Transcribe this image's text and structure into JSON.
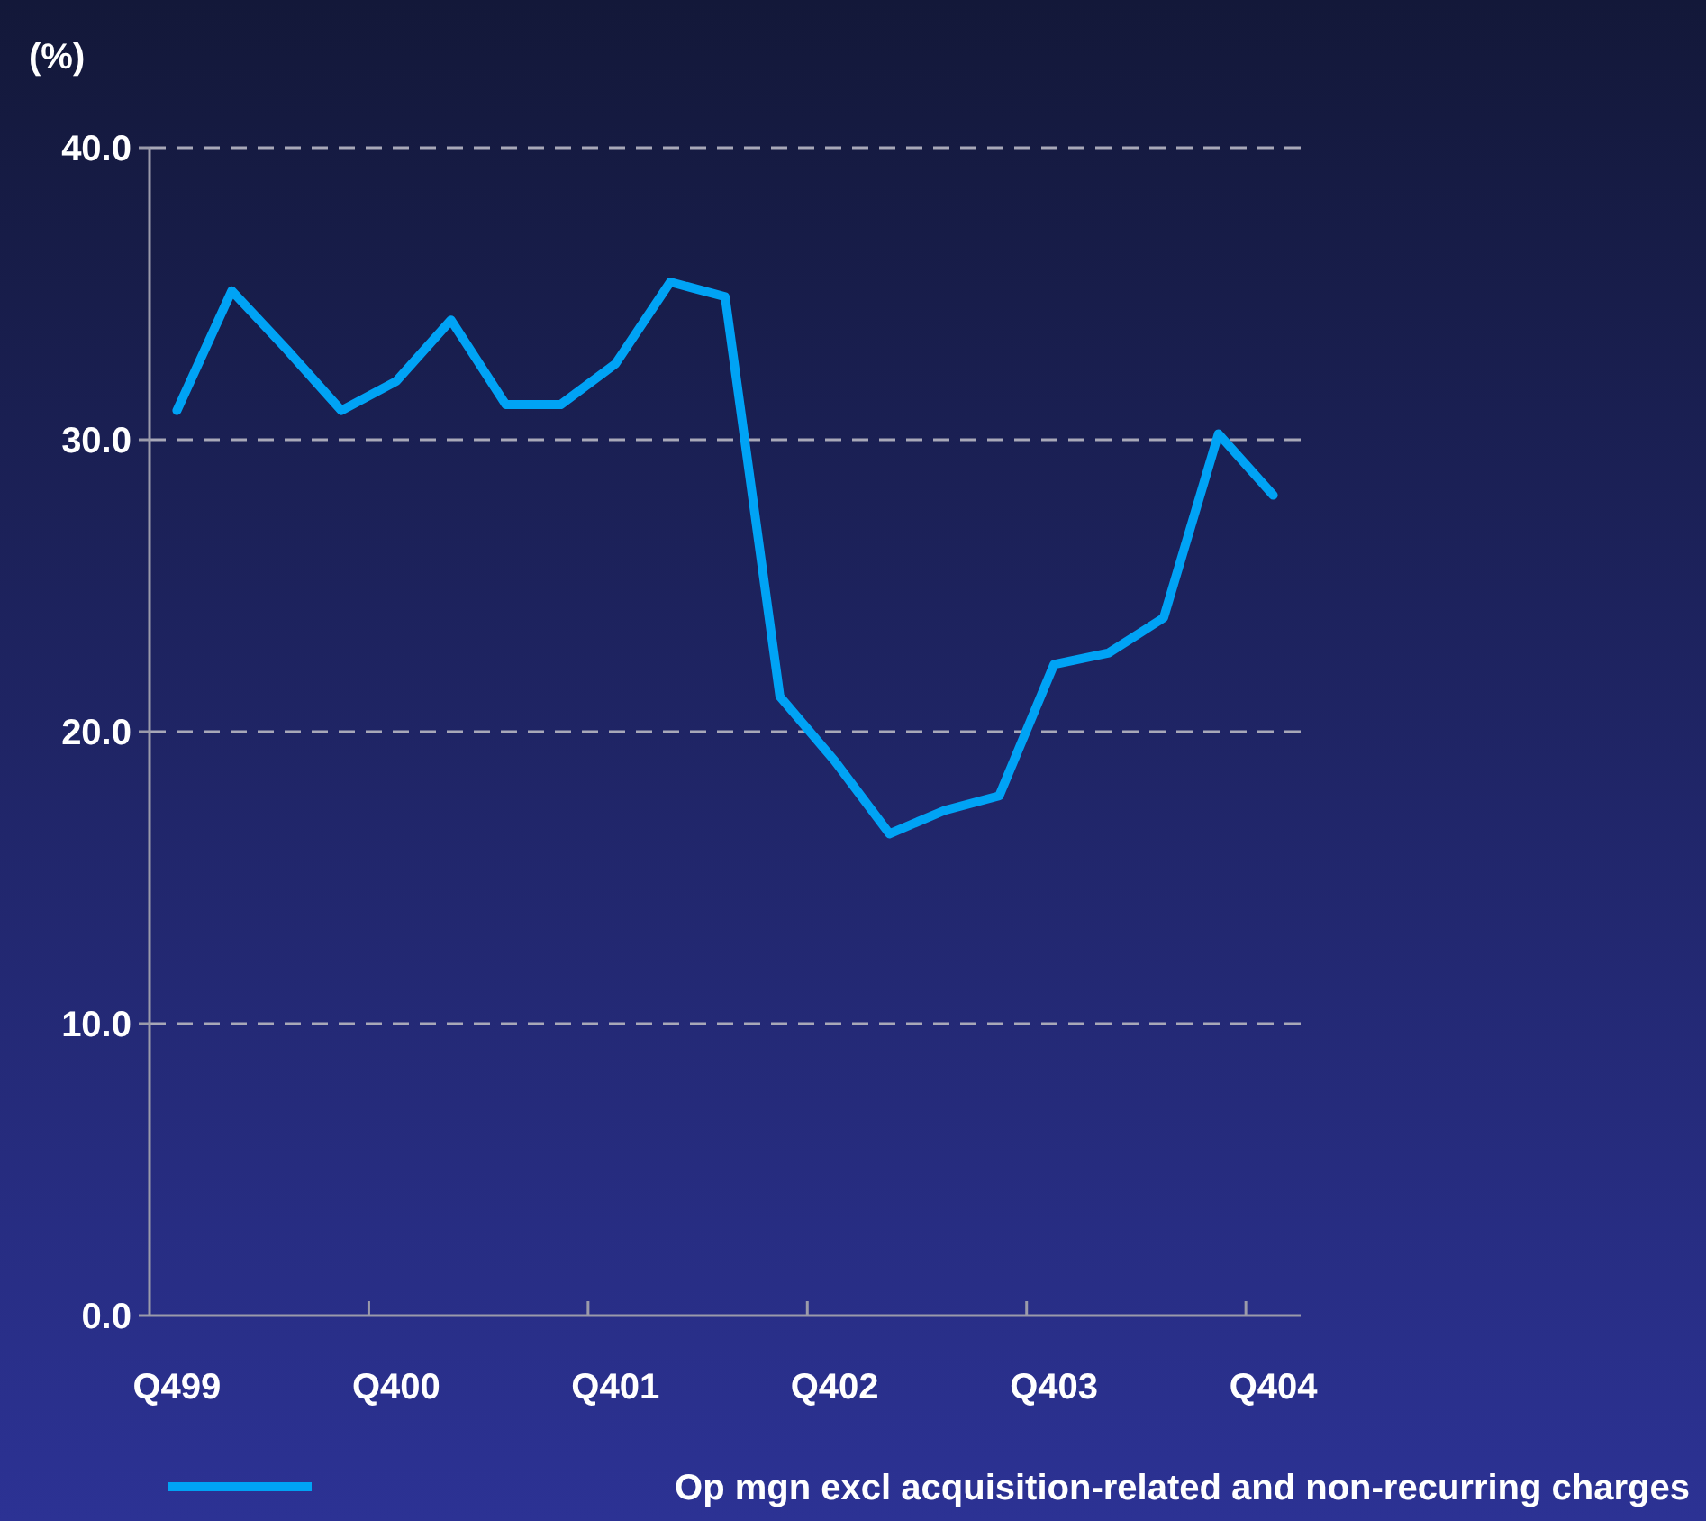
{
  "chart_data": {
    "type": "line",
    "ylabel": "(%)",
    "categories": [
      "Q499",
      null,
      null,
      null,
      "Q400",
      null,
      null,
      null,
      "Q401",
      null,
      null,
      null,
      "Q402",
      null,
      null,
      null,
      "Q403",
      null,
      null,
      null,
      "Q404"
    ],
    "series": [
      {
        "name": "Op mgn excl acquisition-related and non-recurring charges",
        "color": "#00a3f5",
        "values": [
          31.0,
          35.1,
          33.1,
          31.0,
          32.0,
          34.1,
          31.2,
          31.2,
          32.6,
          35.4,
          34.9,
          21.2,
          19.0,
          16.5,
          17.3,
          17.8,
          22.3,
          22.7,
          23.9,
          30.2,
          28.1
        ]
      }
    ],
    "ylim": [
      0,
      40
    ],
    "yticks": [
      {
        "value": 0,
        "label": "0.0"
      },
      {
        "value": 10,
        "label": "10.0"
      },
      {
        "value": 20,
        "label": "20.0"
      },
      {
        "value": 30,
        "label": "30.0"
      },
      {
        "value": 40,
        "label": "40.0"
      }
    ],
    "grid": "y",
    "legend": "bottom",
    "marker": "none",
    "line_style": "solid"
  }
}
